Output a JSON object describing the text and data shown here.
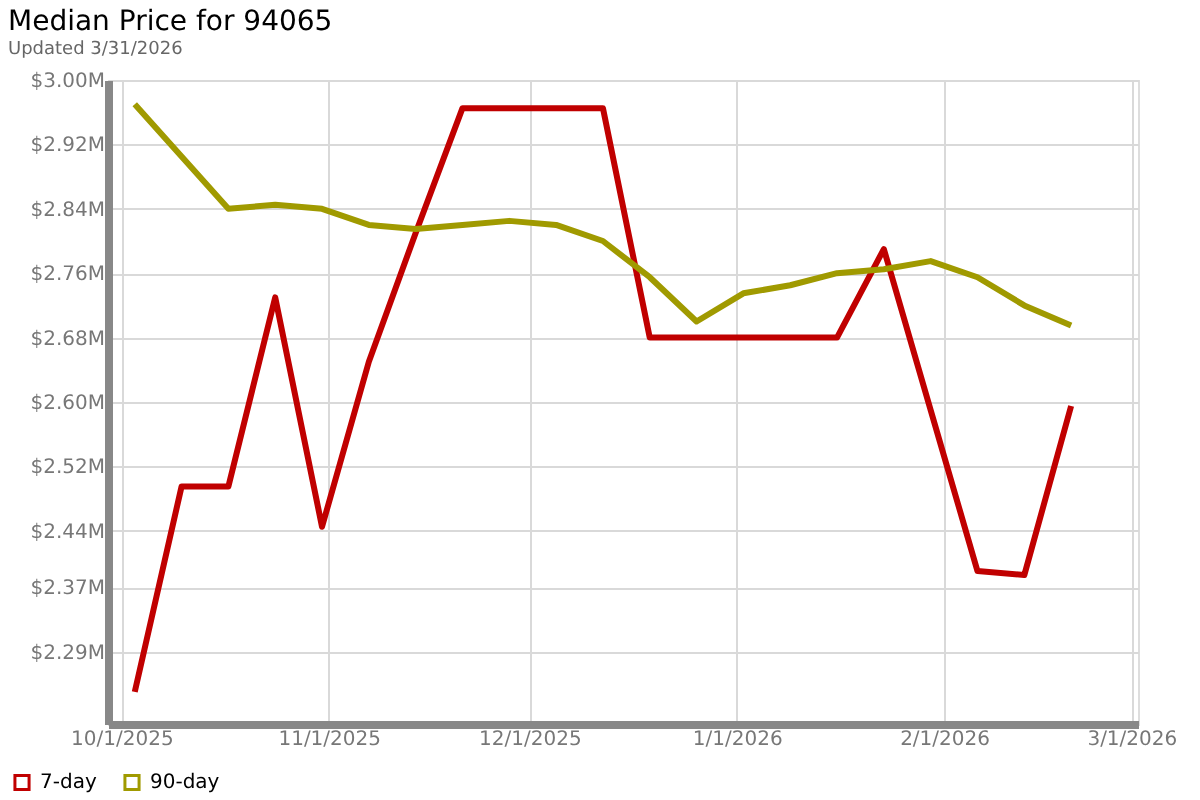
{
  "chart_data": {
    "type": "line",
    "title": "Median Price for 94065",
    "subtitle": "Updated 3/31/2026",
    "x": [
      "2025-10-03",
      "2025-10-10",
      "2025-10-17",
      "2025-10-24",
      "2025-10-31",
      "2025-11-07",
      "2025-11-14",
      "2025-11-21",
      "2025-11-28",
      "2025-12-05",
      "2025-12-12",
      "2025-12-19",
      "2025-12-26",
      "2026-01-02",
      "2026-01-09",
      "2026-01-16",
      "2026-01-23",
      "2026-01-30",
      "2026-02-06",
      "2026-02-13",
      "2026-02-20"
    ],
    "series": [
      {
        "name": "7-day",
        "color": "#c00000",
        "values": [
          2.24,
          2.495,
          2.495,
          2.73,
          2.445,
          2.65,
          2.81,
          2.965,
          2.965,
          2.965,
          2.965,
          2.68,
          2.68,
          2.68,
          2.68,
          2.68,
          2.79,
          2.59,
          2.39,
          2.385,
          2.595
        ]
      },
      {
        "name": "90-day",
        "color": "#a09a00",
        "values": [
          2.97,
          2.905,
          2.84,
          2.845,
          2.84,
          2.82,
          2.815,
          2.82,
          2.825,
          2.82,
          2.8,
          2.755,
          2.7,
          2.735,
          2.745,
          2.76,
          2.765,
          2.775,
          2.755,
          2.72,
          2.695
        ]
      }
    ],
    "xlim": [
      "2025-09-29",
      "2026-03-02"
    ],
    "xticks": [
      {
        "value": "2025-10-01",
        "label": "10/1/2025"
      },
      {
        "value": "2025-11-01",
        "label": "11/1/2025"
      },
      {
        "value": "2025-12-01",
        "label": "12/1/2025"
      },
      {
        "value": "2026-01-01",
        "label": "1/1/2026"
      },
      {
        "value": "2026-02-01",
        "label": "2/1/2026"
      },
      {
        "value": "2026-03-01",
        "label": "3/1/2026"
      }
    ],
    "ylim": [
      2.2,
      3.0
    ],
    "yticks": [
      {
        "value": 2.29,
        "label": "$2.29M"
      },
      {
        "value": 2.37,
        "label": "$2.37M"
      },
      {
        "value": 2.44,
        "label": "$2.44M"
      },
      {
        "value": 2.52,
        "label": "$2.52M"
      },
      {
        "value": 2.6,
        "label": "$2.60M"
      },
      {
        "value": 2.68,
        "label": "$2.68M"
      },
      {
        "value": 2.76,
        "label": "$2.76M"
      },
      {
        "value": 2.84,
        "label": "$2.84M"
      },
      {
        "value": 2.92,
        "label": "$2.92M"
      },
      {
        "value": 3.0,
        "label": "$3.00M"
      }
    ],
    "grid": true,
    "legend": "bottom left",
    "marker": "none",
    "line_style": "solid"
  }
}
